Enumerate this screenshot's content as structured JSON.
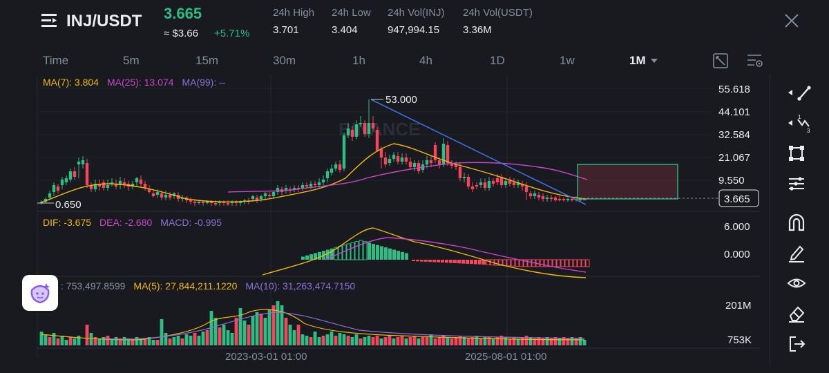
{
  "header": {
    "pair": "INJ/USDT",
    "last_price": "3.665",
    "usd_price": "≈ $3.66",
    "change": "+5.71%",
    "stats": [
      {
        "label": "24h High",
        "value": "3.701"
      },
      {
        "label": "24h Low",
        "value": "3.404"
      },
      {
        "label": "24h Vol(INJ)",
        "value": "947,994.15"
      },
      {
        "label": "24h Vol(USDT)",
        "value": "3.36M"
      }
    ]
  },
  "timeframes": [
    "Time",
    "5m",
    "15m",
    "30m",
    "1h",
    "4h",
    "1D",
    "1w"
  ],
  "active_timeframe": "1M",
  "ma_legend": {
    "ma7": "MA(7): 3.804",
    "ma25": "MA(25): 13.074",
    "ma99": "MA(99): --"
  },
  "price_axis": [
    "55.618",
    "44.101",
    "32.584",
    "21.067",
    "9.550"
  ],
  "current_price_tag": "3.665",
  "annotations": {
    "high": "53.000",
    "low": "0.650"
  },
  "macd_legend": {
    "dif": "DIF: -3.675",
    "dea": "DEA: -2.680",
    "macd": "MACD: -0.995"
  },
  "macd_axis": [
    "6.000",
    "0.000"
  ],
  "vol_legend": {
    "vol": ": 753,497.8599",
    "ma5": "MA(5): 27,844,211.1220",
    "ma10": "MA(10): 31,263,474.7150"
  },
  "vol_axis": [
    "201M",
    "753K"
  ],
  "time_axis": [
    "2023-03-01 01:00",
    "2025-08-01 01:00"
  ],
  "watermark": "BINANCE",
  "colors": {
    "up": "#2ebd85",
    "down": "#f6465d",
    "ma7": "#f0b90b",
    "ma25": "#c848c8",
    "ma99": "#8f6fd8",
    "trendline": "#3d6fe0",
    "bg": "#181a20"
  },
  "icons": {
    "menu": "hamburger-icon",
    "close": "close-icon",
    "dropdown": "chevron-down-icon",
    "tools": [
      "trend-line-icon",
      "fib-icon",
      "shape-icon",
      "indicator-lines-icon",
      "magnet-icon",
      "pencil-icon",
      "eye-icon",
      "eraser-icon",
      "exit-icon"
    ],
    "assistant": "ai-assistant-icon"
  }
}
